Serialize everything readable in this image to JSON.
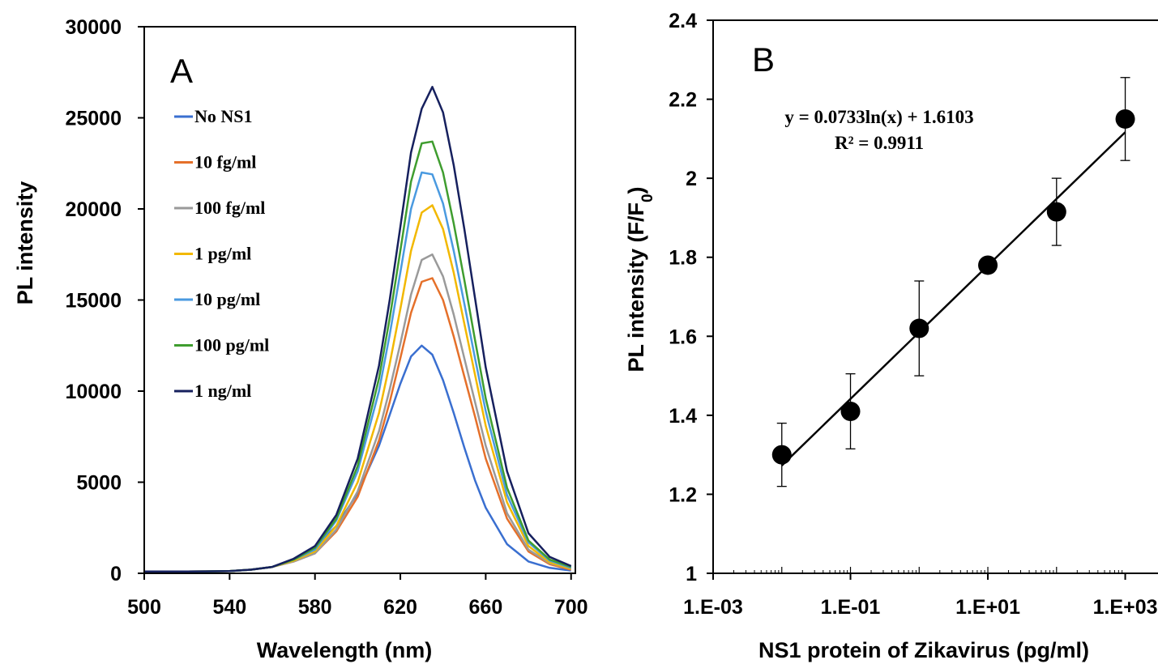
{
  "chart_data": [
    {
      "type": "line",
      "panel_label": "A",
      "xlabel": "Wavelength (nm)",
      "ylabel": "PL intensity",
      "xlim": [
        500,
        702
      ],
      "ylim": [
        0,
        30000
      ],
      "xticks": [
        "500",
        "540",
        "580",
        "620",
        "660",
        "700"
      ],
      "yticks": [
        "0",
        "5000",
        "10000",
        "15000",
        "20000",
        "25000",
        "30000"
      ],
      "grid": false,
      "legend_position": "top-left",
      "x": [
        500,
        520,
        540,
        550,
        560,
        570,
        580,
        590,
        600,
        610,
        615,
        620,
        625,
        630,
        635,
        640,
        645,
        650,
        655,
        660,
        670,
        680,
        690,
        700
      ],
      "series": [
        {
          "name": "No NS1",
          "color": "#3a6fd0",
          "values": [
            100,
            100,
            120,
            200,
            350,
            700,
            1400,
            2600,
            4400,
            7000,
            8700,
            10400,
            11900,
            12500,
            12000,
            10600,
            8800,
            6900,
            5100,
            3600,
            1600,
            650,
            300,
            150
          ]
        },
        {
          "name": "10 fg/ml",
          "color": "#e5702a",
          "values": [
            100,
            100,
            120,
            200,
            350,
            650,
            1100,
            2300,
            4200,
            7300,
            9400,
            11800,
            14300,
            16000,
            16200,
            15000,
            13000,
            10800,
            8600,
            6300,
            3000,
            1200,
            500,
            200
          ]
        },
        {
          "name": "100 fg/ml",
          "color": "#9a9a9a",
          "values": [
            100,
            100,
            120,
            200,
            350,
            650,
            1100,
            2400,
            4500,
            7800,
            10100,
            12600,
            15300,
            17200,
            17500,
            16300,
            14200,
            11800,
            9400,
            7000,
            3300,
            1300,
            550,
            250
          ]
        },
        {
          "name": "1 pg/ml",
          "color": "#f2b800",
          "values": [
            100,
            100,
            120,
            200,
            350,
            700,
            1200,
            2600,
            5000,
            8800,
            11500,
            14500,
            17700,
            19800,
            20200,
            18900,
            16500,
            13700,
            10900,
            8100,
            3900,
            1500,
            600,
            250
          ]
        },
        {
          "name": "10 pg/ml",
          "color": "#4a9ae0",
          "values": [
            100,
            100,
            120,
            200,
            350,
            750,
            1300,
            2900,
            5600,
            10000,
            13100,
            16500,
            20000,
            22000,
            21900,
            20300,
            17700,
            14800,
            11800,
            8900,
            4300,
            1700,
            700,
            300
          ]
        },
        {
          "name": "100 pg/ml",
          "color": "#3f9d2f",
          "values": [
            100,
            100,
            120,
            200,
            350,
            750,
            1400,
            3000,
            5900,
            10700,
            14000,
            17700,
            21500,
            23600,
            23700,
            22000,
            19200,
            16100,
            12800,
            9600,
            4700,
            1800,
            750,
            350
          ]
        },
        {
          "name": "1 ng/ml",
          "color": "#16205e",
          "values": [
            100,
            100,
            120,
            200,
            350,
            800,
            1500,
            3200,
            6300,
            11400,
            15000,
            19000,
            23100,
            25500,
            26700,
            25300,
            22400,
            18900,
            15100,
            11300,
            5600,
            2200,
            900,
            400
          ]
        }
      ]
    },
    {
      "type": "scatter",
      "panel_label": "B",
      "xlabel": "NS1 protein of Zikavirus (pg/ml)",
      "ylabel": "PL intensity (F/F",
      "ylabel_subscript": "0",
      "ylabel_suffix": ")",
      "x_scale": "log",
      "xlim": [
        0.001,
        3000
      ],
      "ylim": [
        1,
        2.4
      ],
      "xticks": [
        "1.E-03",
        "1.E-01",
        "1.E+01",
        "1.E+03"
      ],
      "yticks": [
        "1",
        "1.2",
        "1.4",
        "1.6",
        "1.8",
        "2",
        "2.2",
        "2.4"
      ],
      "grid": false,
      "marker_color": "#000000",
      "points": [
        {
          "x": 0.01,
          "y": 1.3,
          "err": 0.08
        },
        {
          "x": 0.1,
          "y": 1.41,
          "err": 0.095
        },
        {
          "x": 1,
          "y": 1.62,
          "err": 0.12
        },
        {
          "x": 10,
          "y": 1.78,
          "err": 0.0
        },
        {
          "x": 100,
          "y": 1.915,
          "err": 0.085
        },
        {
          "x": 1000,
          "y": 2.15,
          "err": 0.105
        }
      ],
      "trendline": {
        "type": "logarithmic",
        "a": 0.0733,
        "b": 1.6103,
        "x_range": [
          0.01,
          1000
        ]
      },
      "equation": "y = 0.0733ln(x) + 1.6103",
      "r_squared": "R² = 0.9911"
    }
  ]
}
